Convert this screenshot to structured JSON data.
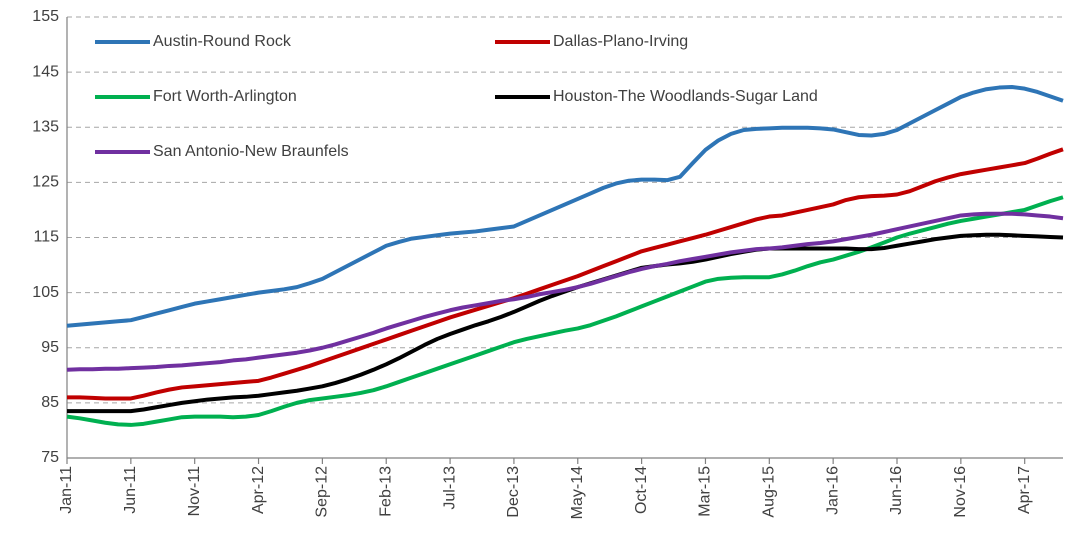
{
  "chart_data": {
    "type": "line",
    "categories": [
      "Jan-11",
      null,
      null,
      null,
      null,
      "Jun-11",
      null,
      null,
      null,
      null,
      "Nov-11",
      null,
      null,
      null,
      null,
      "Apr-12",
      null,
      null,
      null,
      null,
      "Sep-12",
      null,
      null,
      null,
      null,
      "Feb-13",
      null,
      null,
      null,
      null,
      "Jul-13",
      null,
      null,
      null,
      null,
      "Dec-13",
      null,
      null,
      null,
      null,
      "May-14",
      null,
      null,
      null,
      null,
      "Oct-14",
      null,
      null,
      null,
      null,
      "Mar-15",
      null,
      null,
      null,
      null,
      "Aug-15",
      null,
      null,
      null,
      null,
      "Jan-16",
      null,
      null,
      null,
      null,
      "Jun-16",
      null,
      null,
      null,
      null,
      "Nov-16",
      null,
      null,
      null,
      null,
      "Apr-17",
      null,
      null,
      null
    ],
    "series": [
      {
        "name": "Austin-Round Rock",
        "color": "#2e75b6",
        "values": [
          99,
          99.2,
          99.4,
          99.6,
          99.8,
          100,
          100.6,
          101.2,
          101.8,
          102.4,
          103,
          103.4,
          103.8,
          104.2,
          104.6,
          105,
          105.3,
          105.6,
          106,
          106.7,
          107.5,
          108.7,
          109.9,
          111.1,
          112.3,
          113.5,
          114.2,
          114.8,
          115.1,
          115.4,
          115.7,
          115.9,
          116.1,
          116.4,
          116.7,
          117,
          118,
          119,
          120,
          121,
          122,
          123,
          124,
          124.8,
          125.3,
          125.5,
          125.5,
          125.4,
          126,
          128.5,
          130.9,
          132.6,
          133.8,
          134.5,
          134.7,
          134.8,
          134.9,
          134.9,
          134.9,
          134.8,
          134.6,
          134.1,
          133.6,
          133.5,
          133.8,
          134.5,
          135.7,
          136.9,
          138.1,
          139.3,
          140.5,
          141.3,
          141.9,
          142.2,
          142.3,
          142,
          141.4,
          140.6,
          139.8
        ]
      },
      {
        "name": "Dallas-Plano-Irving",
        "color": "#c00000",
        "values": [
          86,
          86,
          85.9,
          85.8,
          85.8,
          85.8,
          86.3,
          86.9,
          87.4,
          87.8,
          88,
          88.2,
          88.4,
          88.6,
          88.8,
          89,
          89.6,
          90.3,
          91,
          91.7,
          92.5,
          93.3,
          94.1,
          94.9,
          95.7,
          96.5,
          97.3,
          98.1,
          98.9,
          99.7,
          100.5,
          101.2,
          101.9,
          102.6,
          103.3,
          104,
          104.8,
          105.6,
          106.4,
          107.2,
          108,
          108.9,
          109.8,
          110.7,
          111.6,
          112.5,
          113.1,
          113.7,
          114.3,
          114.9,
          115.5,
          116.2,
          116.9,
          117.6,
          118.3,
          118.8,
          119,
          119.5,
          120,
          120.5,
          121,
          121.8,
          122.3,
          122.5,
          122.6,
          122.8,
          123.4,
          124.3,
          125.2,
          125.9,
          126.5,
          126.9,
          127.3,
          127.7,
          128.1,
          128.5,
          129.3,
          130.2,
          131
        ]
      },
      {
        "name": "Fort Worth-Arlington",
        "color": "#00b050",
        "values": [
          82.5,
          82.2,
          81.8,
          81.4,
          81.1,
          81,
          81.2,
          81.6,
          82,
          82.4,
          82.5,
          82.5,
          82.5,
          82.4,
          82.5,
          82.8,
          83.5,
          84.3,
          85,
          85.5,
          85.8,
          86.1,
          86.4,
          86.8,
          87.3,
          88,
          88.8,
          89.6,
          90.4,
          91.2,
          92,
          92.8,
          93.6,
          94.4,
          95.2,
          96,
          96.6,
          97.1,
          97.6,
          98.1,
          98.5,
          99.1,
          99.9,
          100.7,
          101.6,
          102.5,
          103.4,
          104.3,
          105.2,
          106.1,
          107,
          107.5,
          107.7,
          107.8,
          107.8,
          107.8,
          108.3,
          109,
          109.8,
          110.5,
          111,
          111.7,
          112.4,
          113.2,
          114.1,
          115,
          115.7,
          116.3,
          116.9,
          117.5,
          118,
          118.4,
          118.8,
          119.2,
          119.6,
          120,
          120.8,
          121.6,
          122.3
        ]
      },
      {
        "name": "Houston-The Woodlands-Sugar Land",
        "color": "#000000",
        "values": [
          83.5,
          83.5,
          83.5,
          83.5,
          83.5,
          83.5,
          83.8,
          84.2,
          84.6,
          85,
          85.3,
          85.6,
          85.8,
          86,
          86.1,
          86.3,
          86.6,
          86.9,
          87.2,
          87.6,
          88,
          88.6,
          89.3,
          90.1,
          91,
          92,
          93.1,
          94.3,
          95.5,
          96.6,
          97.5,
          98.3,
          99.1,
          99.8,
          100.6,
          101.5,
          102.5,
          103.5,
          104.4,
          105.2,
          106,
          106.7,
          107.4,
          108.1,
          108.8,
          109.5,
          109.8,
          110.1,
          110.3,
          110.6,
          111,
          111.5,
          112,
          112.4,
          112.8,
          113,
          113,
          113,
          113,
          113,
          113,
          113,
          112.9,
          112.9,
          113.1,
          113.5,
          113.9,
          114.3,
          114.7,
          115,
          115.3,
          115.4,
          115.5,
          115.5,
          115.4,
          115.3,
          115.2,
          115.1,
          115
        ]
      },
      {
        "name": "San Antonio-New Braunfels",
        "color": "#7030a0",
        "values": [
          91,
          91.1,
          91.1,
          91.2,
          91.2,
          91.3,
          91.4,
          91.5,
          91.7,
          91.8,
          92,
          92.2,
          92.4,
          92.7,
          92.9,
          93.2,
          93.5,
          93.8,
          94.1,
          94.5,
          95,
          95.6,
          96.3,
          97,
          97.7,
          98.5,
          99.2,
          99.9,
          100.6,
          101.2,
          101.8,
          102.3,
          102.7,
          103.1,
          103.5,
          103.8,
          104.2,
          104.7,
          105.1,
          105.5,
          106,
          106.6,
          107.3,
          108,
          108.7,
          109.3,
          109.8,
          110.2,
          110.7,
          111.1,
          111.5,
          111.9,
          112.3,
          112.6,
          112.9,
          113,
          113.2,
          113.5,
          113.8,
          114,
          114.3,
          114.7,
          115.1,
          115.5,
          116,
          116.5,
          117,
          117.5,
          118,
          118.5,
          119,
          119.2,
          119.3,
          119.3,
          119.3,
          119.2,
          119,
          118.8,
          118.5
        ]
      }
    ],
    "ylim": [
      75,
      155
    ],
    "yticks": [
      75,
      85,
      95,
      105,
      115,
      125,
      135,
      145,
      155
    ],
    "grid": true,
    "legend": "top"
  }
}
